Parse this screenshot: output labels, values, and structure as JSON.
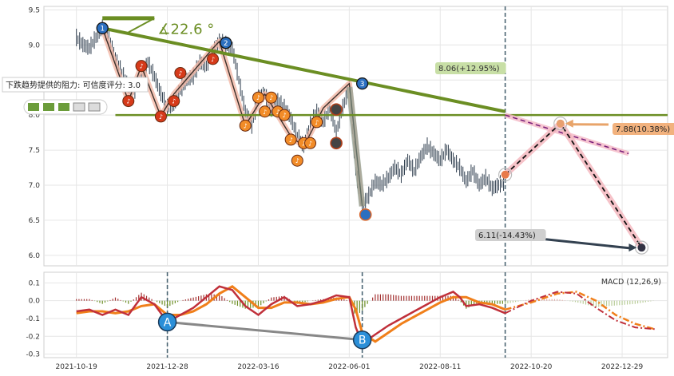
{
  "chart_data": [
    {
      "type": "candlestick",
      "ylim": [
        5.85,
        9.55
      ],
      "yticks": [
        "9.5",
        "9.0",
        "8.5",
        "8.0",
        "7.5",
        "7.0",
        "6.5",
        "6.0"
      ],
      "xticks": [
        "2021-10-19",
        "2021-12-28",
        "2022-03-16",
        "2022-06-01",
        "2022-08-11",
        "2022-10-20",
        "2022-12-29"
      ],
      "grid": true,
      "price_path": [
        [
          0,
          9.1
        ],
        [
          2,
          9.0
        ],
        [
          4,
          8.95
        ],
        [
          6,
          9.1
        ],
        [
          8,
          9.25
        ],
        [
          10,
          9.1
        ],
        [
          12,
          8.8
        ],
        [
          14,
          8.6
        ],
        [
          16,
          8.4
        ],
        [
          18,
          8.35
        ],
        [
          20,
          8.55
        ],
        [
          22,
          8.75
        ],
        [
          24,
          8.55
        ],
        [
          26,
          8.3
        ],
        [
          28,
          8.1
        ],
        [
          30,
          8.15
        ],
        [
          32,
          8.35
        ],
        [
          34,
          8.5
        ],
        [
          36,
          8.55
        ],
        [
          38,
          8.75
        ],
        [
          40,
          8.7
        ],
        [
          42,
          8.9
        ],
        [
          44,
          9.05
        ],
        [
          46,
          9.0
        ],
        [
          48,
          8.95
        ],
        [
          50,
          8.5
        ],
        [
          52,
          8.05
        ],
        [
          54,
          7.85
        ],
        [
          56,
          8.25
        ],
        [
          58,
          8.3
        ],
        [
          60,
          8.05
        ],
        [
          62,
          8.2
        ],
        [
          64,
          8.1
        ],
        [
          66,
          7.95
        ],
        [
          68,
          7.7
        ],
        [
          70,
          7.55
        ],
        [
          72,
          7.85
        ],
        [
          74,
          8.05
        ],
        [
          76,
          7.9
        ],
        [
          78,
          8.1
        ],
        [
          80,
          7.75
        ],
        [
          82,
          8.1
        ],
        [
          84,
          8.4
        ],
        [
          86,
          7.2
        ],
        [
          88,
          6.7
        ],
        [
          90,
          6.85
        ],
        [
          92,
          7.05
        ],
        [
          94,
          7.0
        ],
        [
          96,
          7.1
        ],
        [
          98,
          7.25
        ],
        [
          100,
          7.15
        ],
        [
          102,
          7.35
        ],
        [
          104,
          7.2
        ],
        [
          106,
          7.4
        ],
        [
          108,
          7.55
        ],
        [
          110,
          7.45
        ],
        [
          112,
          7.35
        ],
        [
          114,
          7.5
        ],
        [
          116,
          7.35
        ],
        [
          118,
          7.25
        ],
        [
          120,
          7.05
        ],
        [
          122,
          7.2
        ],
        [
          124,
          7.0
        ],
        [
          126,
          7.1
        ],
        [
          128,
          6.95
        ],
        [
          130,
          7.0
        ],
        [
          132,
          7.05
        ]
      ],
      "projection": {
        "upper_target": "7.88(10.38%)",
        "lower_target": "6.11(-14.43%)",
        "mid_target": "8.06(+12.95%)",
        "points": [
          [
            132,
            7.15
          ],
          [
            149,
            7.88
          ],
          [
            174,
            6.11
          ]
        ]
      },
      "trendlines": {
        "falling": [
          [
            8,
            9.24
          ],
          [
            132,
            8.05
          ]
        ],
        "support": [
          [
            12,
            8.0
          ],
          [
            178,
            8.0
          ]
        ],
        "projection_dashed": [
          [
            132,
            8.0
          ],
          [
            170,
            7.45
          ]
        ]
      },
      "angle_label": "∡22.6 °",
      "resistance_tooltip": {
        "text": "下跌趋势提供的阻力: 可信度评分: 3.0"
      },
      "pivot_labels": [
        "1",
        "2",
        "3"
      ],
      "note_markers": [
        [
          16,
          8.2
        ],
        [
          20,
          8.7
        ],
        [
          26,
          7.98
        ],
        [
          30,
          8.2
        ],
        [
          32,
          8.6
        ],
        [
          42,
          8.8
        ],
        [
          52,
          7.85
        ],
        [
          56,
          8.25
        ],
        [
          58,
          8.05
        ],
        [
          60,
          8.25
        ],
        [
          62,
          8.05
        ],
        [
          64,
          8.0
        ],
        [
          66,
          7.65
        ],
        [
          68,
          7.35
        ],
        [
          70,
          7.6
        ],
        [
          72,
          7.6
        ],
        [
          74,
          7.9
        ]
      ]
    },
    {
      "type": "line",
      "title": "MACD (12,26,9)",
      "ylim": [
        -0.32,
        0.16
      ],
      "yticks": [
        "0.1",
        "0.0",
        "-0.1",
        "-0.2",
        "-0.3"
      ],
      "grid": true,
      "macd_line": [
        [
          0,
          -0.06
        ],
        [
          4,
          -0.05
        ],
        [
          8,
          -0.08
        ],
        [
          12,
          -0.05
        ],
        [
          16,
          -0.08
        ],
        [
          20,
          0.02
        ],
        [
          24,
          -0.02
        ],
        [
          28,
          -0.12
        ],
        [
          32,
          -0.08
        ],
        [
          36,
          -0.04
        ],
        [
          40,
          0.02
        ],
        [
          44,
          0.08
        ],
        [
          48,
          0.06
        ],
        [
          52,
          -0.03
        ],
        [
          56,
          -0.08
        ],
        [
          60,
          -0.02
        ],
        [
          64,
          0.02
        ],
        [
          68,
          -0.03
        ],
        [
          72,
          -0.02
        ],
        [
          76,
          0.0
        ],
        [
          80,
          0.03
        ],
        [
          84,
          0.02
        ],
        [
          86,
          -0.15
        ],
        [
          88,
          -0.24
        ],
        [
          92,
          -0.19
        ],
        [
          96,
          -0.14
        ],
        [
          100,
          -0.1
        ],
        [
          104,
          -0.06
        ],
        [
          108,
          -0.02
        ],
        [
          112,
          0.02
        ],
        [
          116,
          0.05
        ],
        [
          118,
          0.02
        ],
        [
          120,
          -0.03
        ],
        [
          124,
          -0.02
        ],
        [
          128,
          -0.04
        ],
        [
          132,
          -0.07
        ]
      ],
      "signal_line": [
        [
          0,
          -0.07
        ],
        [
          4,
          -0.06
        ],
        [
          8,
          -0.06
        ],
        [
          12,
          -0.07
        ],
        [
          16,
          -0.06
        ],
        [
          20,
          -0.03
        ],
        [
          24,
          -0.02
        ],
        [
          28,
          -0.08
        ],
        [
          32,
          -0.08
        ],
        [
          36,
          -0.06
        ],
        [
          40,
          -0.02
        ],
        [
          44,
          0.04
        ],
        [
          48,
          0.08
        ],
        [
          52,
          0.02
        ],
        [
          56,
          -0.04
        ],
        [
          60,
          -0.04
        ],
        [
          64,
          -0.01
        ],
        [
          68,
          -0.01
        ],
        [
          72,
          -0.02
        ],
        [
          76,
          -0.01
        ],
        [
          80,
          0.01
        ],
        [
          84,
          0.02
        ],
        [
          86,
          -0.05
        ],
        [
          88,
          -0.18
        ],
        [
          92,
          -0.23
        ],
        [
          96,
          -0.18
        ],
        [
          100,
          -0.13
        ],
        [
          104,
          -0.09
        ],
        [
          108,
          -0.05
        ],
        [
          112,
          -0.01
        ],
        [
          116,
          0.02
        ],
        [
          120,
          0.02
        ],
        [
          124,
          -0.01
        ],
        [
          128,
          -0.02
        ],
        [
          132,
          -0.05
        ]
      ],
      "projection_macd": [
        [
          132,
          -0.07
        ],
        [
          140,
          0.0
        ],
        [
          148,
          0.05
        ],
        [
          154,
          0.04
        ],
        [
          160,
          -0.04
        ],
        [
          166,
          -0.11
        ],
        [
          172,
          -0.15
        ],
        [
          178,
          -0.16
        ]
      ],
      "projection_signal": [
        [
          132,
          -0.05
        ],
        [
          140,
          -0.01
        ],
        [
          148,
          0.04
        ],
        [
          154,
          0.05
        ],
        [
          160,
          0.0
        ],
        [
          166,
          -0.08
        ],
        [
          172,
          -0.13
        ],
        [
          178,
          -0.16
        ]
      ],
      "markers": [
        {
          "label": "A",
          "x": 28,
          "y": -0.12
        },
        {
          "label": "B",
          "x": 88,
          "y": -0.22
        }
      ]
    }
  ]
}
